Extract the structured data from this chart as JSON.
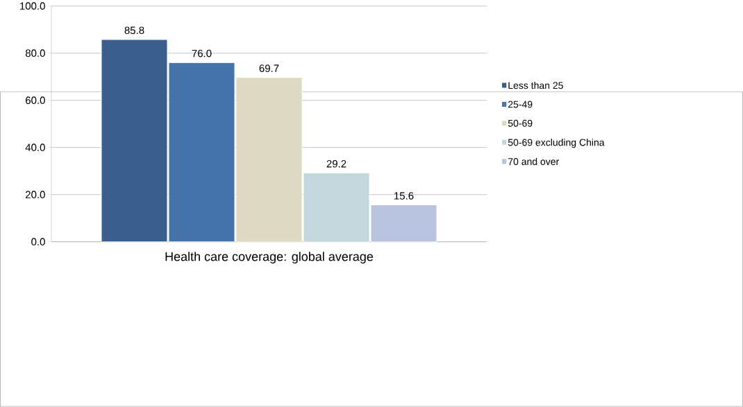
{
  "chart_data": {
    "type": "bar",
    "categories": [
      "Health care coverage: global average"
    ],
    "series": [
      {
        "name": "Less than 25",
        "color": "#3b5e8c",
        "values": [
          85.8
        ],
        "value_labels": [
          "85.8"
        ]
      },
      {
        "name": "25-49",
        "color": "#4674aa",
        "values": [
          76.0
        ],
        "value_labels": [
          "76.0"
        ]
      },
      {
        "name": "50-69",
        "color": "#ddd9c3",
        "values": [
          69.7
        ],
        "value_labels": [
          "69.7"
        ]
      },
      {
        "name": "50-69  excluding China",
        "color": "#c3d7dd",
        "values": [
          29.2
        ],
        "value_labels": [
          "29.2"
        ]
      },
      {
        "name": "70 and over",
        "color": "#b9c4e0",
        "values": [
          15.6
        ],
        "value_labels": [
          "15.6"
        ]
      }
    ],
    "ylim": [
      0,
      100
    ],
    "yticks": [
      {
        "value": 0,
        "label": "0.0"
      },
      {
        "value": 20,
        "label": "20.0"
      },
      {
        "value": 40,
        "label": "40.0"
      },
      {
        "value": 60,
        "label": "60.0"
      },
      {
        "value": 80,
        "label": "80.0"
      },
      {
        "value": 100,
        "label": "100.0"
      }
    ],
    "grid": "y",
    "legend": "right"
  }
}
